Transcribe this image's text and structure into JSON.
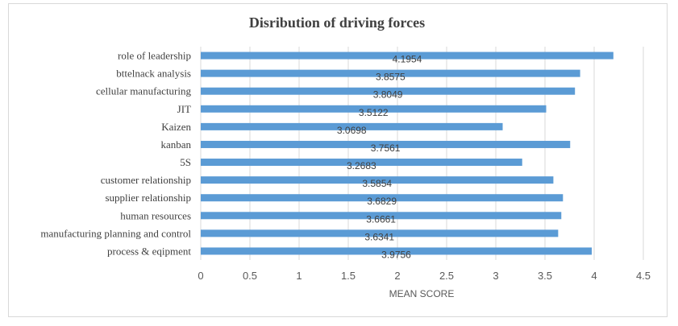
{
  "chart_data": {
    "type": "bar",
    "orientation": "horizontal",
    "title": "Disribution of driving forces",
    "xlabel": "MEAN SCORE",
    "ylabel": "",
    "xlim": [
      0,
      4.5
    ],
    "xticks": [
      "0",
      "0.5",
      "1",
      "1.5",
      "2",
      "2.5",
      "3",
      "3.5",
      "4",
      "4.5"
    ],
    "grid": "vertical",
    "bar_color": "#5b9bd5",
    "categories": [
      "role of leadership",
      "bttelnack analysis",
      "cellular manufacturing",
      "JIT",
      "Kaizen",
      "kanban",
      "5S",
      "customer relationship",
      "supplier relationship",
      "human resources",
      "manufacturing planning and control",
      "process & eqipment"
    ],
    "values": [
      4.1954,
      3.8575,
      3.8049,
      3.5122,
      3.0698,
      3.7561,
      3.2683,
      3.5854,
      3.6829,
      3.6661,
      3.6341,
      3.9756
    ],
    "data_labels": [
      "4.1954",
      "3.8575",
      "3.8049",
      "3.5122",
      "3.0698",
      "3.7561",
      "3.2683",
      "3.5854",
      "3.6829",
      "3.6661",
      "3.6341",
      "3.9756"
    ]
  }
}
